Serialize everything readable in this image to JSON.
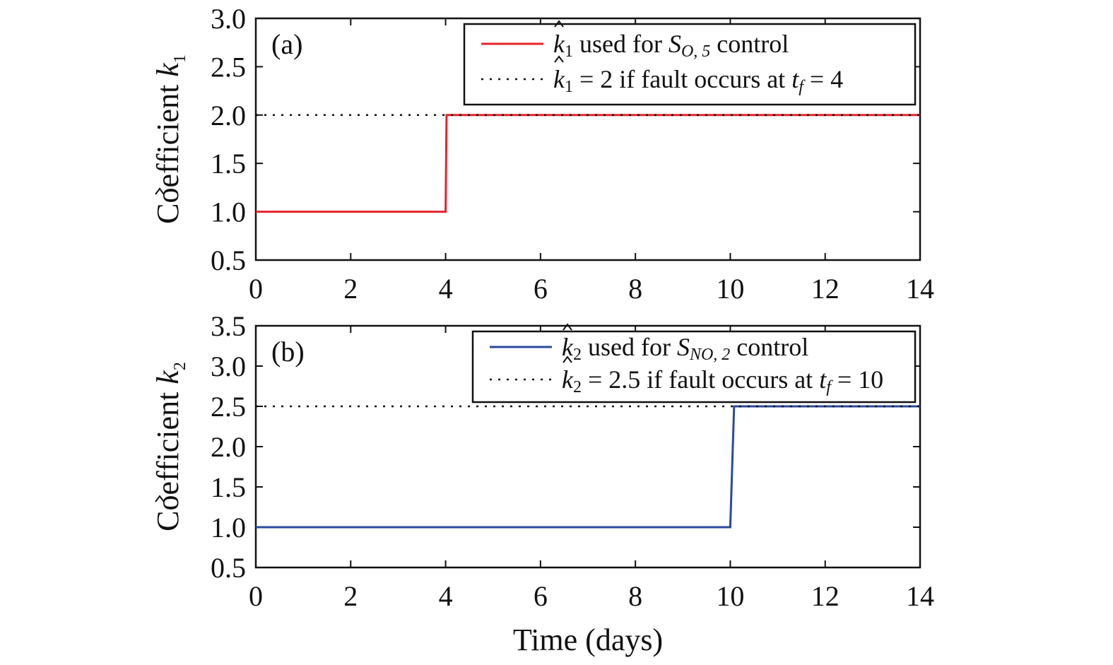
{
  "chart_data": [
    {
      "type": "line",
      "panel_label": "(a)",
      "ylabel_prefix": "Coefficient",
      "ylabel_symbol": "k",
      "ylabel_sub": "1",
      "xlim": [
        0,
        14
      ],
      "ylim": [
        0.5,
        3.0
      ],
      "xticks": [
        "0",
        "2",
        "4",
        "6",
        "8",
        "10",
        "12",
        "14"
      ],
      "xtick_values": [
        0,
        2,
        4,
        6,
        8,
        10,
        12,
        14
      ],
      "yticks": [
        "0.5",
        "1.0",
        "1.5",
        "2.0",
        "2.5",
        "3.0"
      ],
      "ytick_values": [
        0.5,
        1.0,
        1.5,
        2.0,
        2.5,
        3.0
      ],
      "grid": false,
      "legend_position": "top-right",
      "series": [
        {
          "style": "solid",
          "color": "#e8232a",
          "legend": {
            "sym": "k",
            "sub": "1",
            "mid": "used for",
            "sym2": "S",
            "sub2": "O, 5",
            "tail": "control"
          },
          "x": [
            0,
            4.0,
            4.02,
            14
          ],
          "y": [
            1.0,
            1.0,
            2.0,
            2.0
          ]
        },
        {
          "style": "dotted",
          "color": "#111111",
          "legend": {
            "sym": "k",
            "sub": "1",
            "mid": "= 2 if fault occurs at",
            "sym2": "t",
            "sub2": "f",
            "tail": "= 4"
          },
          "x": [
            0,
            14
          ],
          "y": [
            2.0,
            2.0
          ]
        }
      ]
    },
    {
      "type": "line",
      "panel_label": "(b)",
      "ylabel_prefix": "Coefficient",
      "ylabel_symbol": "k",
      "ylabel_sub": "2",
      "xlabel": "Time (days)",
      "xlim": [
        0,
        14
      ],
      "ylim": [
        0.5,
        3.5
      ],
      "xticks": [
        "0",
        "2",
        "4",
        "6",
        "8",
        "10",
        "12",
        "14"
      ],
      "xtick_values": [
        0,
        2,
        4,
        6,
        8,
        10,
        12,
        14
      ],
      "yticks": [
        "0.5",
        "1.0",
        "1.5",
        "2.0",
        "2.5",
        "3.0",
        "3.5"
      ],
      "ytick_values": [
        0.5,
        1.0,
        1.5,
        2.0,
        2.5,
        3.0,
        3.5
      ],
      "grid": false,
      "legend_position": "top-right",
      "series": [
        {
          "style": "solid",
          "color": "#2a4a9c",
          "legend": {
            "sym": "k",
            "sub": "2",
            "mid": "used for",
            "sym2": "S",
            "sub2": "NO, 2",
            "tail": "control"
          },
          "x": [
            0,
            10.0,
            10.08,
            14
          ],
          "y": [
            1.0,
            1.0,
            2.5,
            2.5
          ]
        },
        {
          "style": "dotted",
          "color": "#111111",
          "legend": {
            "sym": "k",
            "sub": "2",
            "mid": "= 2.5 if fault occurs at",
            "sym2": "t",
            "sub2": "f",
            "tail": "= 10"
          },
          "x": [
            0,
            14
          ],
          "y": [
            2.5,
            2.5
          ]
        }
      ]
    }
  ]
}
